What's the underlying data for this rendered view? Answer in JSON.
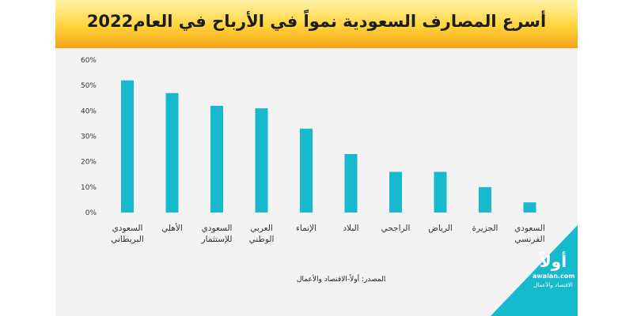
{
  "chart_data": {
    "type": "bar",
    "title": "أسرع المصارف السعودية نمواً في الأرباح في العام2022",
    "categories": [
      [
        "السعودي",
        "البريطاني"
      ],
      [
        "الأهلي"
      ],
      [
        "السعودي",
        "للإستثمار"
      ],
      [
        "العربي",
        "الوطني"
      ],
      [
        "الإنماء"
      ],
      [
        "البلاد"
      ],
      [
        "الراجحي"
      ],
      [
        "الرياض"
      ],
      [
        "الجزيرة"
      ],
      [
        "السعودي",
        "الفرنسي"
      ]
    ],
    "values": [
      52,
      47,
      42,
      41,
      33,
      23,
      16,
      16,
      10,
      4
    ],
    "y_ticks": [
      0,
      10,
      20,
      30,
      40,
      50,
      60
    ],
    "y_tick_labels": [
      "0%",
      "10%",
      "20%",
      "30%",
      "40%",
      "50%",
      "60%"
    ],
    "ylim": [
      0,
      60
    ],
    "grid": false,
    "colors": {
      "bar": "#17b9cc"
    }
  },
  "source": "المصدر: أولاً-الاقتصاد والأعمال",
  "logo": {
    "mark": "أولاً",
    "url": "awalan.com",
    "tagline": "الاقتصاد والأعمال"
  }
}
